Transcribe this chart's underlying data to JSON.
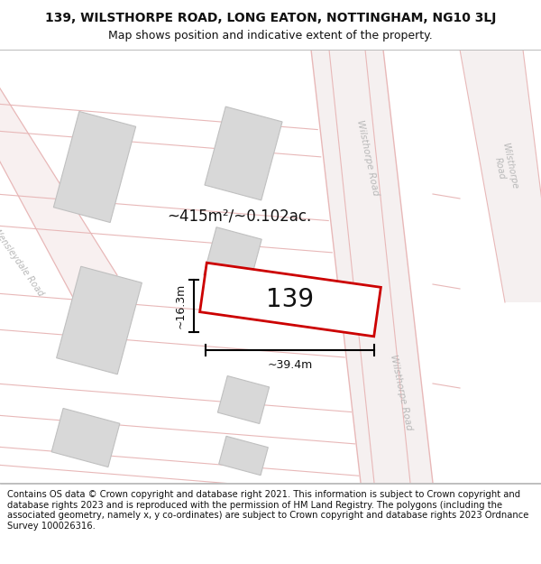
{
  "title_line1": "139, WILSTHORPE ROAD, LONG EATON, NOTTINGHAM, NG10 3LJ",
  "title_line2": "Map shows position and indicative extent of the property.",
  "footer_text": "Contains OS data © Crown copyright and database right 2021. This information is subject to Crown copyright and database rights 2023 and is reproduced with the permission of HM Land Registry. The polygons (including the associated geometry, namely x, y co-ordinates) are subject to Crown copyright and database rights 2023 Ordnance Survey 100026316.",
  "plot_number": "139",
  "area_label": "~415m²/~0.102ac.",
  "width_label": "~39.4m",
  "height_label": "~16.3m",
  "map_bg": "#ffffff",
  "road_line_color": "#e8b8b8",
  "building_fill": "#d8d8d8",
  "building_edge": "#c0c0c0",
  "highlight_fill": "#ffffff",
  "highlight_edge": "#cc0000",
  "road_label_color": "#b8b8b8",
  "title_fontsize": 10,
  "subtitle_fontsize": 9,
  "footer_fontsize": 7.2
}
